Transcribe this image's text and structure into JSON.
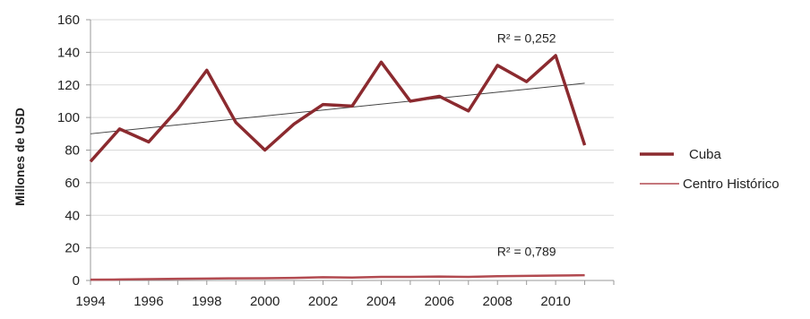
{
  "chart_data": {
    "type": "line",
    "title": "",
    "xlabel": "",
    "ylabel": "Millones de USD",
    "x": [
      1994,
      1995,
      1996,
      1997,
      1998,
      1999,
      2000,
      2001,
      2002,
      2003,
      2004,
      2005,
      2006,
      2007,
      2008,
      2009,
      2010,
      2011
    ],
    "x_tick_labels": [
      "1994",
      "1996",
      "1998",
      "2000",
      "2002",
      "2004",
      "2006",
      "2008",
      "2010"
    ],
    "y_tick_labels": [
      "0",
      "20",
      "40",
      "60",
      "80",
      "100",
      "120",
      "140",
      "160"
    ],
    "ylim": [
      0,
      160
    ],
    "grid": true,
    "legend_position": "right",
    "series": [
      {
        "name": "Cuba",
        "color": "#8b2a2f",
        "values": [
          73,
          93,
          85,
          105,
          129,
          97,
          80,
          96,
          108,
          107,
          134,
          110,
          113,
          104,
          132,
          122,
          138,
          83
        ]
      },
      {
        "name": "Centro Histórico",
        "color": "#b24a50",
        "values": [
          0.5,
          0.6,
          0.8,
          1.0,
          1.2,
          1.3,
          1.4,
          1.6,
          2.0,
          1.8,
          2.2,
          2.2,
          2.4,
          2.2,
          2.6,
          2.8,
          3.0,
          3.2
        ]
      }
    ],
    "trendlines": [
      {
        "series": "Cuba",
        "start": [
          1994,
          90
        ],
        "end": [
          2011,
          121
        ],
        "color": "#444444"
      },
      {
        "series": "Centro Histórico",
        "start": [
          1994,
          0.7
        ],
        "end": [
          2011,
          3.0
        ],
        "color": "#777777"
      }
    ],
    "annotations": [
      {
        "text": "R² = 0,252",
        "x": 2009,
        "y": 146
      },
      {
        "text": "R² = 0,789",
        "x": 2009,
        "y": 15
      }
    ]
  }
}
